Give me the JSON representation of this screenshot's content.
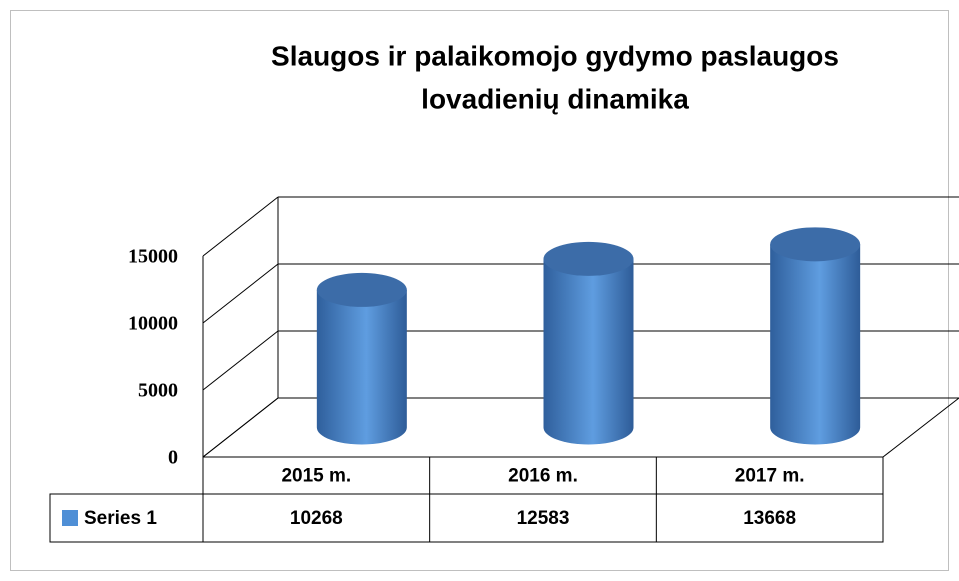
{
  "chart_data": {
    "type": "bar3d-cylinder",
    "title": [
      "Slaugos ir palaikomojo gydymo paslaugos",
      "lovadienių dinamika"
    ],
    "categories": [
      "2015 m.",
      "2016 m.",
      "2017 m."
    ],
    "series": [
      {
        "name": "Series 1",
        "color": "#4f8fd6",
        "values": [
          10268,
          12583,
          13668
        ]
      }
    ],
    "ylim": [
      0,
      15000
    ],
    "yticks": [
      0,
      5000,
      10000,
      15000
    ],
    "grid": true
  }
}
